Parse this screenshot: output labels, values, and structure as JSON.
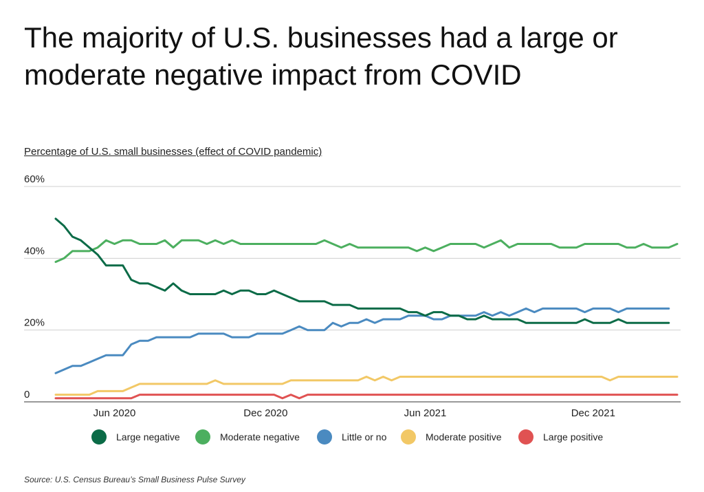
{
  "title_lines": [
    "The majority of U.S. businesses had a large or",
    "moderate negative impact from COVID"
  ],
  "source": "Source:  U.S. Census Bureau’s Small Business Pulse Survey",
  "chart_data": {
    "type": "line",
    "title": "The majority of U.S. businesses had a large or moderate negative impact from COVID",
    "ylabel": "Percentage of U.S. small businesses (effect of COVID pandemic)",
    "xlabel": "",
    "ylim": [
      0,
      60
    ],
    "y_ticks": [
      "0",
      "20%",
      "40%",
      "60%"
    ],
    "y_tick_values": [
      0,
      20,
      40,
      60
    ],
    "x_tick_labels": [
      "Jun 2020",
      "Dec 2020",
      "Jun 2021",
      "Dec 2021"
    ],
    "x_tick_index": [
      7,
      25,
      44,
      64
    ],
    "grid": true,
    "legend_position": "bottom",
    "series": [
      {
        "name": "Large negative",
        "color": "#0b6b47",
        "values": [
          51,
          49,
          46,
          45,
          43,
          41,
          38,
          38,
          38,
          34,
          33,
          33,
          32,
          31,
          33,
          31,
          30,
          30,
          30,
          30,
          31,
          30,
          31,
          31,
          30,
          30,
          31,
          30,
          29,
          28,
          28,
          28,
          28,
          27,
          27,
          27,
          26,
          26,
          26,
          26,
          26,
          26,
          25,
          25,
          24,
          25,
          25,
          24,
          24,
          23,
          23,
          24,
          23,
          23,
          23,
          23,
          22,
          22,
          22,
          22,
          22,
          22,
          22,
          23,
          22,
          22,
          22,
          23,
          22,
          22,
          22,
          22,
          22,
          22
        ]
      },
      {
        "name": "Moderate negative",
        "color": "#4caf5f",
        "values": [
          39,
          40,
          42,
          42,
          42,
          43,
          45,
          44,
          45,
          45,
          44,
          44,
          44,
          45,
          43,
          45,
          45,
          45,
          44,
          45,
          44,
          45,
          44,
          44,
          44,
          44,
          44,
          44,
          44,
          44,
          44,
          44,
          45,
          44,
          43,
          44,
          43,
          43,
          43,
          43,
          43,
          43,
          43,
          42,
          43,
          42,
          43,
          44,
          44,
          44,
          44,
          43,
          44,
          45,
          43,
          44,
          44,
          44,
          44,
          44,
          43,
          43,
          43,
          44,
          44,
          44,
          44,
          44,
          43,
          43,
          44,
          43,
          43,
          43,
          44
        ]
      },
      {
        "name": "Little or no",
        "color": "#4a8ac0",
        "values": [
          8,
          9,
          10,
          10,
          11,
          12,
          13,
          13,
          13,
          16,
          17,
          17,
          18,
          18,
          18,
          18,
          18,
          19,
          19,
          19,
          19,
          18,
          18,
          18,
          19,
          19,
          19,
          19,
          20,
          21,
          20,
          20,
          20,
          22,
          21,
          22,
          22,
          23,
          22,
          23,
          23,
          23,
          24,
          24,
          24,
          23,
          23,
          24,
          24,
          24,
          24,
          25,
          24,
          25,
          24,
          25,
          26,
          25,
          26,
          26,
          26,
          26,
          26,
          25,
          26,
          26,
          26,
          25,
          26,
          26,
          26,
          26,
          26,
          26
        ]
      },
      {
        "name": "Moderate positive",
        "color": "#f2c866",
        "values": [
          2,
          2,
          2,
          2,
          2,
          3,
          3,
          3,
          3,
          4,
          5,
          5,
          5,
          5,
          5,
          5,
          5,
          5,
          5,
          6,
          5,
          5,
          5,
          5,
          5,
          5,
          5,
          5,
          6,
          6,
          6,
          6,
          6,
          6,
          6,
          6,
          6,
          7,
          6,
          7,
          6,
          7,
          7,
          7,
          7,
          7,
          7,
          7,
          7,
          7,
          7,
          7,
          7,
          7,
          7,
          7,
          7,
          7,
          7,
          7,
          7,
          7,
          7,
          7,
          7,
          7,
          6,
          7,
          7,
          7,
          7,
          7,
          7,
          7,
          7
        ]
      },
      {
        "name": "Large positive",
        "color": "#e05252",
        "values": [
          1,
          1,
          1,
          1,
          1,
          1,
          1,
          1,
          1,
          1,
          2,
          2,
          2,
          2,
          2,
          2,
          2,
          2,
          2,
          2,
          2,
          2,
          2,
          2,
          2,
          2,
          2,
          1,
          2,
          1,
          2,
          2,
          2,
          2,
          2,
          2,
          2,
          2,
          2,
          2,
          2,
          2,
          2,
          2,
          2,
          2,
          2,
          2,
          2,
          2,
          2,
          2,
          2,
          2,
          2,
          2,
          2,
          2,
          2,
          2,
          2,
          2,
          2,
          2,
          2,
          2,
          2,
          2,
          2,
          2,
          2,
          2,
          2,
          2,
          2
        ]
      }
    ]
  }
}
